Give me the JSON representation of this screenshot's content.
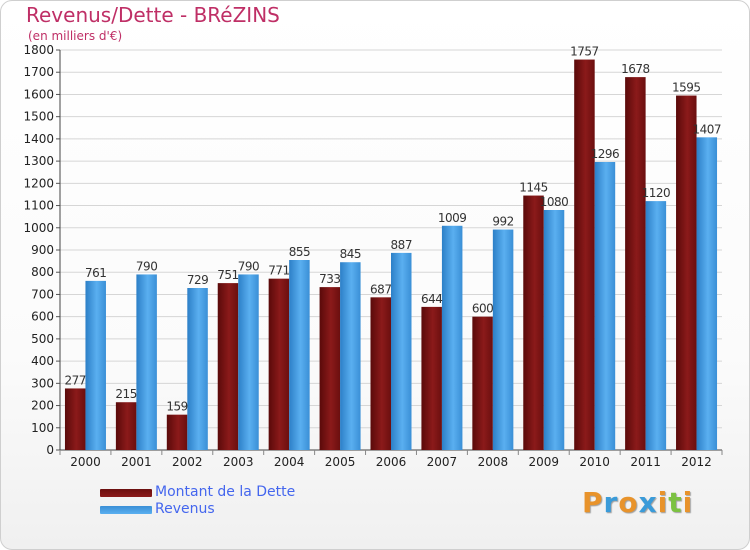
{
  "title": "Revenus/Dette - BRéZINS",
  "subtitle": "(en milliers d'€)",
  "brand": {
    "letters": [
      "P",
      "r",
      "o",
      "x",
      "i",
      "t",
      "i"
    ]
  },
  "colors": {
    "title": "#bf2f66",
    "dette": "#8b1a1a",
    "revenus": "#4da6ea",
    "legend_text": "#4466ee",
    "brand": [
      "#e8932b",
      "#3a9bd9",
      "#e8932b",
      "#3a9bd9",
      "#e8932b",
      "#7cc242",
      "#e8932b"
    ]
  },
  "legend": [
    {
      "label": "Montant de la Dette",
      "color_key": "dette"
    },
    {
      "label": "Revenus",
      "color_key": "revenus"
    }
  ],
  "chart_data": {
    "type": "bar",
    "categories": [
      "2000",
      "2001",
      "2002",
      "2003",
      "2004",
      "2005",
      "2006",
      "2007",
      "2008",
      "2009",
      "2010",
      "2011",
      "2012"
    ],
    "series": [
      {
        "name": "Montant de la Dette",
        "values": [
          277,
          215,
          159,
          751,
          771,
          733,
          687,
          644,
          600,
          1145,
          1757,
          1678,
          1595
        ]
      },
      {
        "name": "Revenus",
        "values": [
          761,
          790,
          729,
          790,
          855,
          845,
          887,
          1009,
          992,
          1080,
          1296,
          1120,
          1407
        ]
      }
    ],
    "ylim": [
      0,
      1800
    ],
    "yticks": [
      0,
      100,
      200,
      300,
      400,
      500,
      600,
      700,
      800,
      900,
      1000,
      1100,
      1200,
      1300,
      1400,
      1500,
      1600,
      1700,
      1800
    ],
    "grid": true
  }
}
